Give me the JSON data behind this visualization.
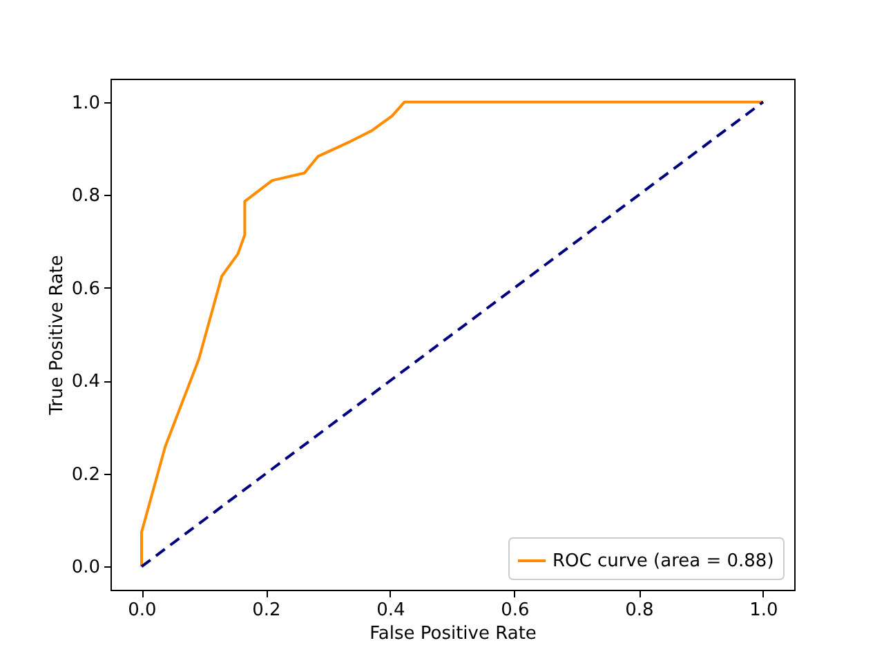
{
  "chart_data": {
    "type": "line",
    "xlabel": "False Positive Rate",
    "ylabel": "True Positive Rate",
    "xlim": [
      -0.05,
      1.05
    ],
    "ylim": [
      -0.05,
      1.05
    ],
    "xticks": [
      {
        "value": 0,
        "label": "0.0"
      },
      {
        "value": 0.2,
        "label": "0.2"
      },
      {
        "value": 0.4,
        "label": "0.4"
      },
      {
        "value": 0.6,
        "label": "0.6"
      },
      {
        "value": 0.8,
        "label": "0.8"
      },
      {
        "value": 1,
        "label": "1.0"
      }
    ],
    "yticks": [
      {
        "value": 0,
        "label": "0.0"
      },
      {
        "value": 0.2,
        "label": "0.2"
      },
      {
        "value": 0.4,
        "label": "0.4"
      },
      {
        "value": 0.6,
        "label": "0.6"
      },
      {
        "value": 0.8,
        "label": "0.8"
      },
      {
        "value": 1,
        "label": "1.0"
      }
    ],
    "grid": false,
    "legend": "bottom right",
    "marker": "none",
    "series": [
      {
        "name": "ROC curve (area = 0.88)",
        "color": "#ff8c00",
        "line_style": "solid",
        "x": [
          0,
          0,
          0.038,
          0.092,
          0.129,
          0.155,
          0.166,
          0.166,
          0.21,
          0.262,
          0.284,
          0.336,
          0.37,
          0.403,
          0.423,
          1
        ],
        "values": [
          0,
          0.074,
          0.258,
          0.446,
          0.625,
          0.673,
          0.714,
          0.786,
          0.831,
          0.847,
          0.883,
          0.915,
          0.938,
          0.97,
          1,
          1
        ]
      },
      {
        "color": "#000080",
        "line_style": "dashed",
        "x": [
          0,
          1
        ],
        "values": [
          0,
          1
        ]
      }
    ]
  }
}
